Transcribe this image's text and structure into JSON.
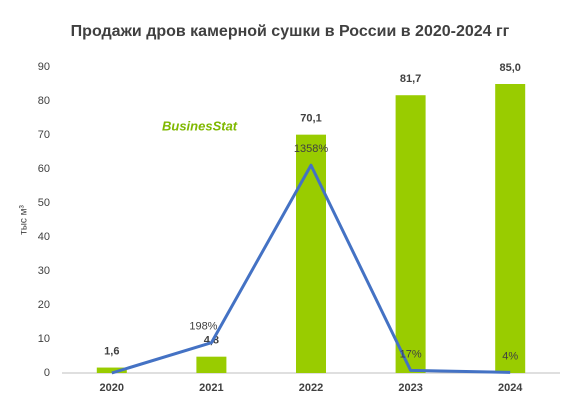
{
  "chart_data": {
    "type": "bar",
    "title": "Продажи дров камерной сушки в России в 2020-2024 гг",
    "ylabel": "тыс м³",
    "logo": "BusinesStat",
    "categories": [
      "2020",
      "2021",
      "2022",
      "2023",
      "2024"
    ],
    "values": [
      1.6,
      4.8,
      70.1,
      81.7,
      85.0
    ],
    "value_labels": [
      "1,6",
      "4,8",
      "70,1",
      "81,7",
      "85,0"
    ],
    "color": "#99cc00",
    "ylim": [
      0,
      90
    ],
    "yticks": [
      0,
      10,
      20,
      30,
      40,
      50,
      60,
      70,
      80,
      90
    ],
    "grid": false,
    "series": [
      {
        "type": "line",
        "axis": "y2",
        "color": "#4472c4",
        "values": [
          0,
          198,
          1358,
          17,
          4
        ],
        "value_labels": [
          null,
          "198%",
          "1358%",
          "17%",
          "4%"
        ]
      }
    ],
    "y2lim": [
      0,
      2000
    ]
  }
}
